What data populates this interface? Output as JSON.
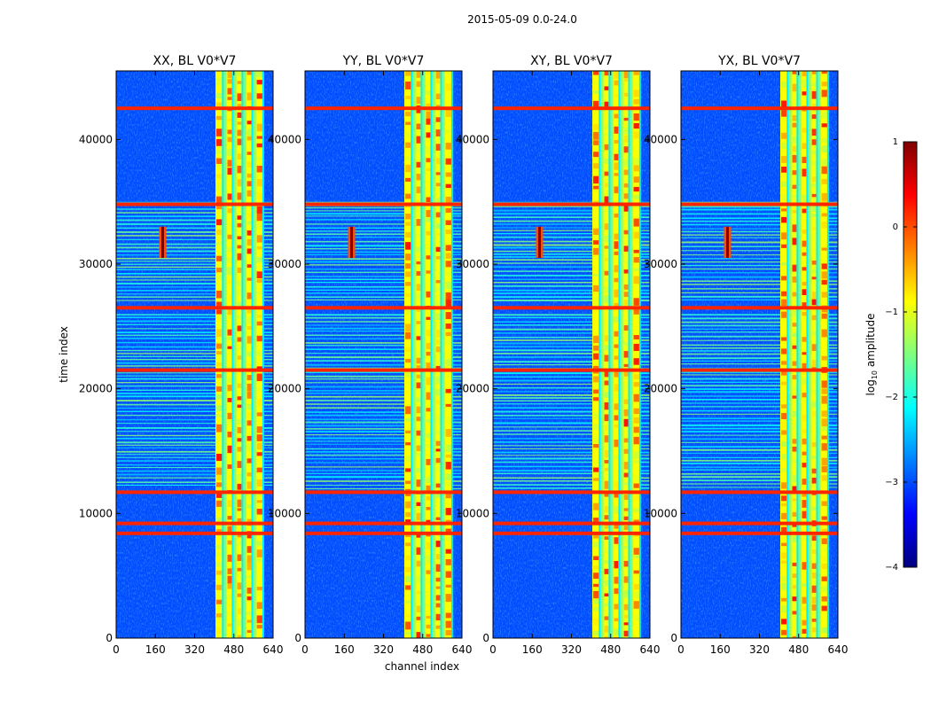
{
  "chart_data": {
    "type": "heatmap",
    "suptitle": "2015-05-09 0.0-24.0",
    "xlabel": "channel index",
    "ylabel": "time index",
    "xlim": [
      0,
      640
    ],
    "ylim": [
      0,
      45500
    ],
    "x_ticks": [
      0,
      160,
      320,
      480,
      640
    ],
    "y_ticks": [
      0,
      10000,
      20000,
      30000,
      40000
    ],
    "panels": [
      {
        "title": "XX, BL V0*V7",
        "pol": "XX"
      },
      {
        "title": "YY, BL V0*V7",
        "pol": "YY"
      },
      {
        "title": "XY, BL V0*V7",
        "pol": "XY"
      },
      {
        "title": "YX, BL V0*V7",
        "pol": "YX"
      }
    ],
    "features": {
      "rfi_channel_band": [
        405,
        600
      ],
      "rfi_channel_columns": [
        405,
        435,
        450,
        475,
        490,
        515,
        530,
        555,
        570,
        600
      ],
      "hot_rows": [
        42500,
        34800,
        26500,
        21500,
        11700,
        9200,
        8400
      ],
      "dense_striping_time_ranges": [
        [
          12000,
          26000
        ],
        [
          27000,
          35000
        ]
      ],
      "transient": {
        "channel": 190,
        "time_range": [
          30500,
          33000
        ],
        "peak": 1.0
      },
      "baseline": -3.0
    },
    "colorbar": {
      "label": "log10 amplitude",
      "label_main": "log",
      "label_sub": "10",
      "label_rest": " amplitude",
      "min": -4,
      "max": 1,
      "ticks": [
        1,
        0,
        -1,
        -2,
        -3,
        -4
      ],
      "tick_labels": [
        "1",
        "0",
        "−1",
        "−2",
        "−3",
        "−4"
      ],
      "colormap": "jet"
    }
  }
}
